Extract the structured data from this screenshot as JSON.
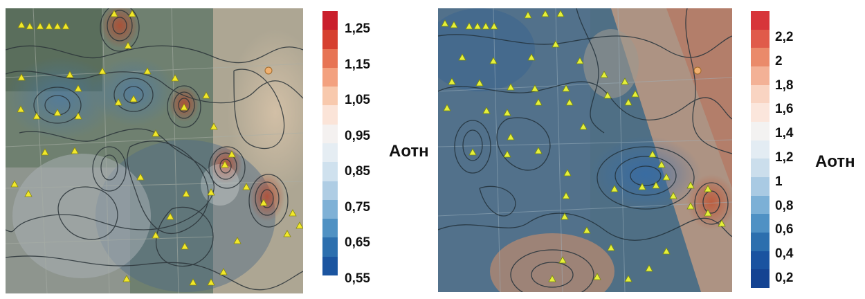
{
  "maps": [
    {
      "id": "left",
      "legend": {
        "unit_label": "Аотн",
        "ticks": [
          "1,25",
          "1,15",
          "1,05",
          "0,95",
          "0,85",
          "0,75",
          "0,65",
          "0,55"
        ],
        "colors": [
          "#ca1f2c",
          "#d6402f",
          "#e77454",
          "#f3a17f",
          "#f8c9ad",
          "#fbe4d8",
          "#f4f1f0",
          "#e5edf3",
          "#cfe1ee",
          "#afcde4",
          "#7fb1d6",
          "#4f91c3",
          "#2c6fae",
          "#1b55a0"
        ]
      },
      "markers": [
        "triangle-marker"
      ]
    },
    {
      "id": "right",
      "legend": {
        "unit_label": "Аотн",
        "ticks": [
          "2,2",
          "2",
          "1,8",
          "1,6",
          "1,4",
          "1,2",
          "1",
          "0,8",
          "0,6",
          "0,4",
          "0,2"
        ],
        "colors": [
          "#d7353a",
          "#e05b4a",
          "#ea8a6a",
          "#f3b196",
          "#f9d4c2",
          "#fbe6dc",
          "#f3f2f1",
          "#e3ecf3",
          "#cbdeec",
          "#a9cae3",
          "#7cb0d6",
          "#4f91c4",
          "#2c6fae",
          "#1a53a0",
          "#144392"
        ]
      }
    }
  ]
}
